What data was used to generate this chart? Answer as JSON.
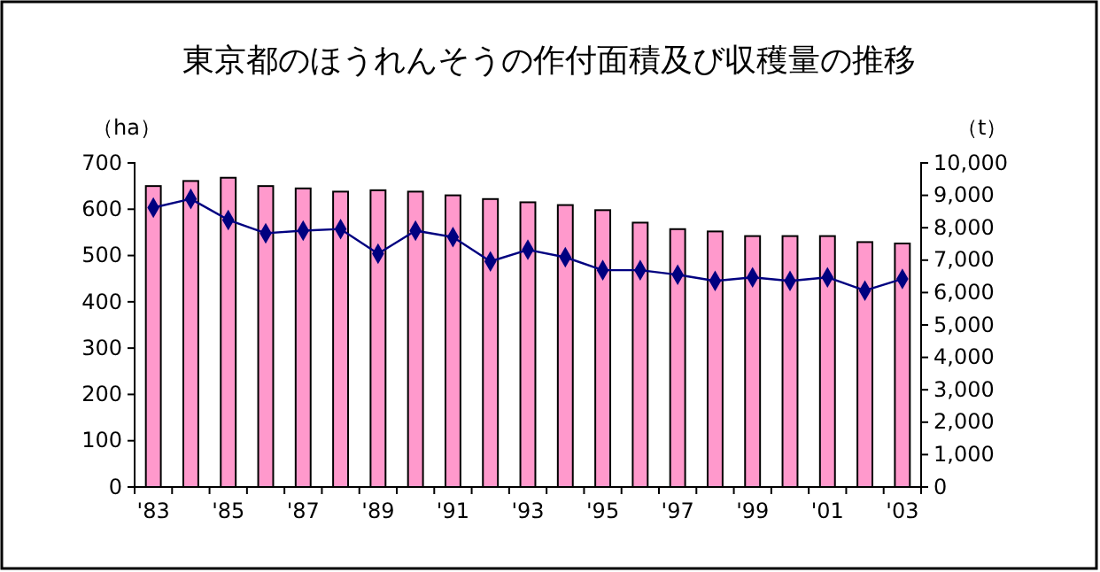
{
  "chart_data": {
    "type": "bar",
    "title": "東京都のほうれんそうの作付面積及び収穫量の推移",
    "ylabel": "（ha）",
    "y2label": "（t）",
    "categories": [
      "'83",
      null,
      "'85",
      null,
      "'87",
      null,
      "'89",
      null,
      "'91",
      null,
      "'93",
      null,
      "'95",
      null,
      "'97",
      null,
      "'99",
      null,
      "'01",
      null,
      "'03"
    ],
    "series": [
      {
        "color": "#ff99cc",
        "values": [
          650,
          661,
          668,
          650,
          645,
          638,
          641,
          638,
          630,
          622,
          615,
          609,
          598,
          571,
          557,
          552,
          542,
          542,
          542,
          529,
          526
        ]
      },
      {
        "type": "line",
        "axis": "y2",
        "color": "#000080",
        "marker": "diamond",
        "values": [
          8620,
          8890,
          8240,
          7830,
          7910,
          7960,
          7200,
          7910,
          7710,
          6960,
          7320,
          7090,
          6690,
          6690,
          6550,
          6360,
          6470,
          6360,
          6470,
          6060,
          6420
        ]
      }
    ],
    "ylim": [
      0,
      700
    ],
    "yticks": [
      0,
      100,
      200,
      300,
      400,
      500,
      600,
      700
    ],
    "y2lim": [
      0,
      10000
    ],
    "y2ticks": [
      {
        "value": 0,
        "label": "0"
      },
      {
        "value": 1000,
        "label": "1,000"
      },
      {
        "value": 2000,
        "label": "2,000"
      },
      {
        "value": 3000,
        "label": "3,000"
      },
      {
        "value": 4000,
        "label": "4,000"
      },
      {
        "value": 5000,
        "label": "5,000"
      },
      {
        "value": 6000,
        "label": "6,000"
      },
      {
        "value": 7000,
        "label": "7,000"
      },
      {
        "value": 8000,
        "label": "8,000"
      },
      {
        "value": 9000,
        "label": "9,000"
      },
      {
        "value": 10000,
        "label": "10,000"
      }
    ],
    "grid": false
  }
}
